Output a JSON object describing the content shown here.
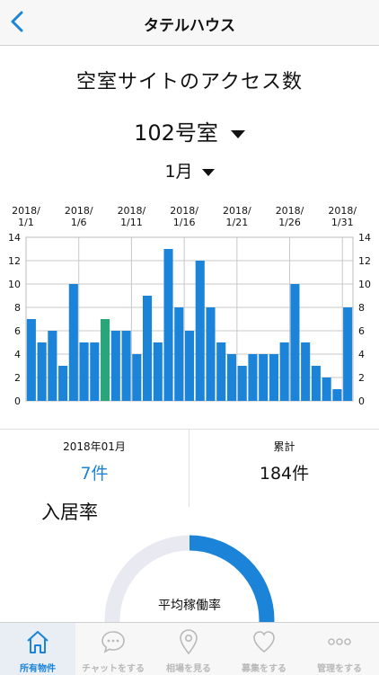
{
  "header": {
    "title": "タテルハウス"
  },
  "page_title": "空室サイトのアクセス数",
  "room_select": {
    "value": "102号室"
  },
  "month_select": {
    "value": "1月"
  },
  "chart_data": {
    "type": "bar",
    "x_tick_labels": [
      "2018/\n1/1",
      "2018/\n1/6",
      "2018/\n1/11",
      "2018/\n1/16",
      "2018/\n1/21",
      "2018/\n1/26",
      "2018/\n1/31"
    ],
    "y_ticks": [
      0,
      2,
      4,
      6,
      8,
      10,
      12,
      14
    ],
    "ylim": [
      0,
      14
    ],
    "categories": [
      "1/1",
      "1/2",
      "1/3",
      "1/4",
      "1/5",
      "1/6",
      "1/7",
      "1/8",
      "1/9",
      "1/10",
      "1/11",
      "1/12",
      "1/13",
      "1/14",
      "1/15",
      "1/16",
      "1/17",
      "1/18",
      "1/19",
      "1/20",
      "1/21",
      "1/22",
      "1/23",
      "1/24",
      "1/25",
      "1/26",
      "1/27",
      "1/28",
      "1/29",
      "1/30",
      "1/31"
    ],
    "values": [
      7,
      5,
      6,
      3,
      10,
      5,
      5,
      7,
      6,
      6,
      4,
      9,
      5,
      13,
      8,
      6,
      12,
      8,
      5,
      4,
      3,
      4,
      4,
      4,
      5,
      10,
      5,
      3,
      2,
      1,
      8
    ],
    "highlight_index": 7,
    "bar_color": "#1b84d8",
    "highlight_color": "#2aa57a",
    "grid": true
  },
  "stats": {
    "month_caption": "2018年01月",
    "month_value": "7件",
    "total_caption": "累計",
    "total_value": "184件"
  },
  "occupancy": {
    "label": "入居率",
    "gauge_label": "平均稼働率",
    "value_fraction": 0.5,
    "color": "#1b84d8"
  },
  "tabs": [
    {
      "label": "所有物件",
      "icon": "home-icon",
      "active": true
    },
    {
      "label": "チャットをする",
      "icon": "chat-icon",
      "active": false
    },
    {
      "label": "相場を見る",
      "icon": "map-pin-icon",
      "active": false
    },
    {
      "label": "募集をする",
      "icon": "heart-icon",
      "active": false
    },
    {
      "label": "管理をする",
      "icon": "more-icon",
      "active": false
    }
  ],
  "colors": {
    "accent": "#1b84d8"
  }
}
